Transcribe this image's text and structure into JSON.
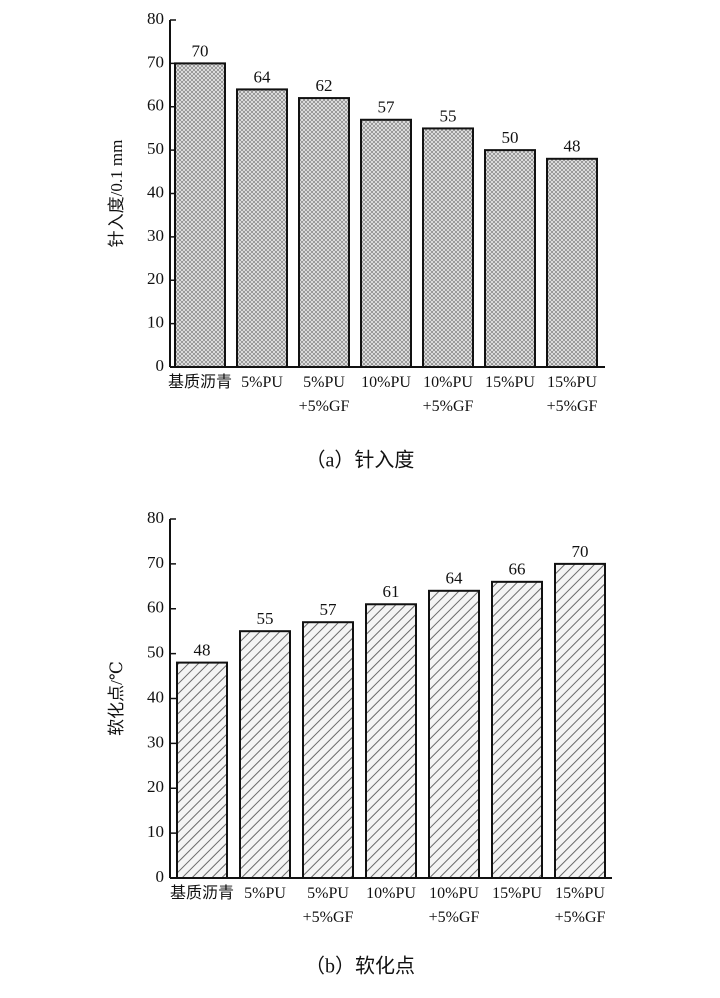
{
  "chart_data": [
    {
      "type": "bar",
      "caption": "（a）针入度",
      "y_label": "针入度/0.1 mm",
      "categories": [
        "基质沥青",
        "5%PU",
        "5%PU\n+5%GF",
        "10%PU",
        "10%PU\n+5%GF",
        "15%PU",
        "15%PU\n+5%GF"
      ],
      "values": [
        70,
        64,
        62,
        57,
        55,
        50,
        48
      ],
      "ylim": [
        0,
        80
      ],
      "yticks": [
        0,
        10,
        20,
        30,
        40,
        50,
        60,
        70,
        80
      ],
      "hatch": "cross",
      "color": "#cfcfcf"
    },
    {
      "type": "bar",
      "caption": "（b）软化点",
      "y_label": "软化点/℃",
      "categories": [
        "基质沥青",
        "5%PU",
        "5%PU\n+5%GF",
        "10%PU",
        "10%PU\n+5%GF",
        "15%PU",
        "15%PU\n+5%GF"
      ],
      "values": [
        48,
        55,
        57,
        61,
        64,
        66,
        70
      ],
      "ylim": [
        0,
        80
      ],
      "yticks": [
        0,
        10,
        20,
        30,
        40,
        50,
        60,
        70,
        80
      ],
      "hatch": "diagonal",
      "color": "#9a9a9a"
    }
  ]
}
